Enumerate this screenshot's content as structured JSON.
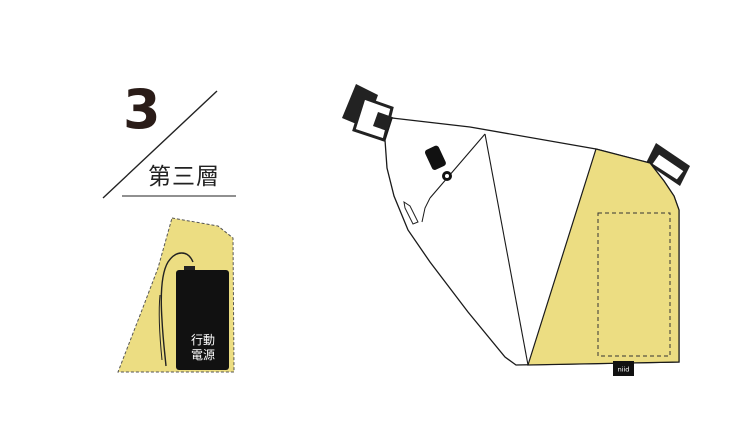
{
  "step": {
    "number": "3",
    "title": "第三層"
  },
  "pocket_illustration": {
    "device_label_line1": "行動",
    "device_label_line2": "電源"
  },
  "bag_illustration": {
    "brand_tag": "niid"
  },
  "colors": {
    "accent_yellow": "#ecdd82",
    "outline": "#1a1a1a",
    "numeral": "#2a1c18",
    "device": "#111111"
  }
}
